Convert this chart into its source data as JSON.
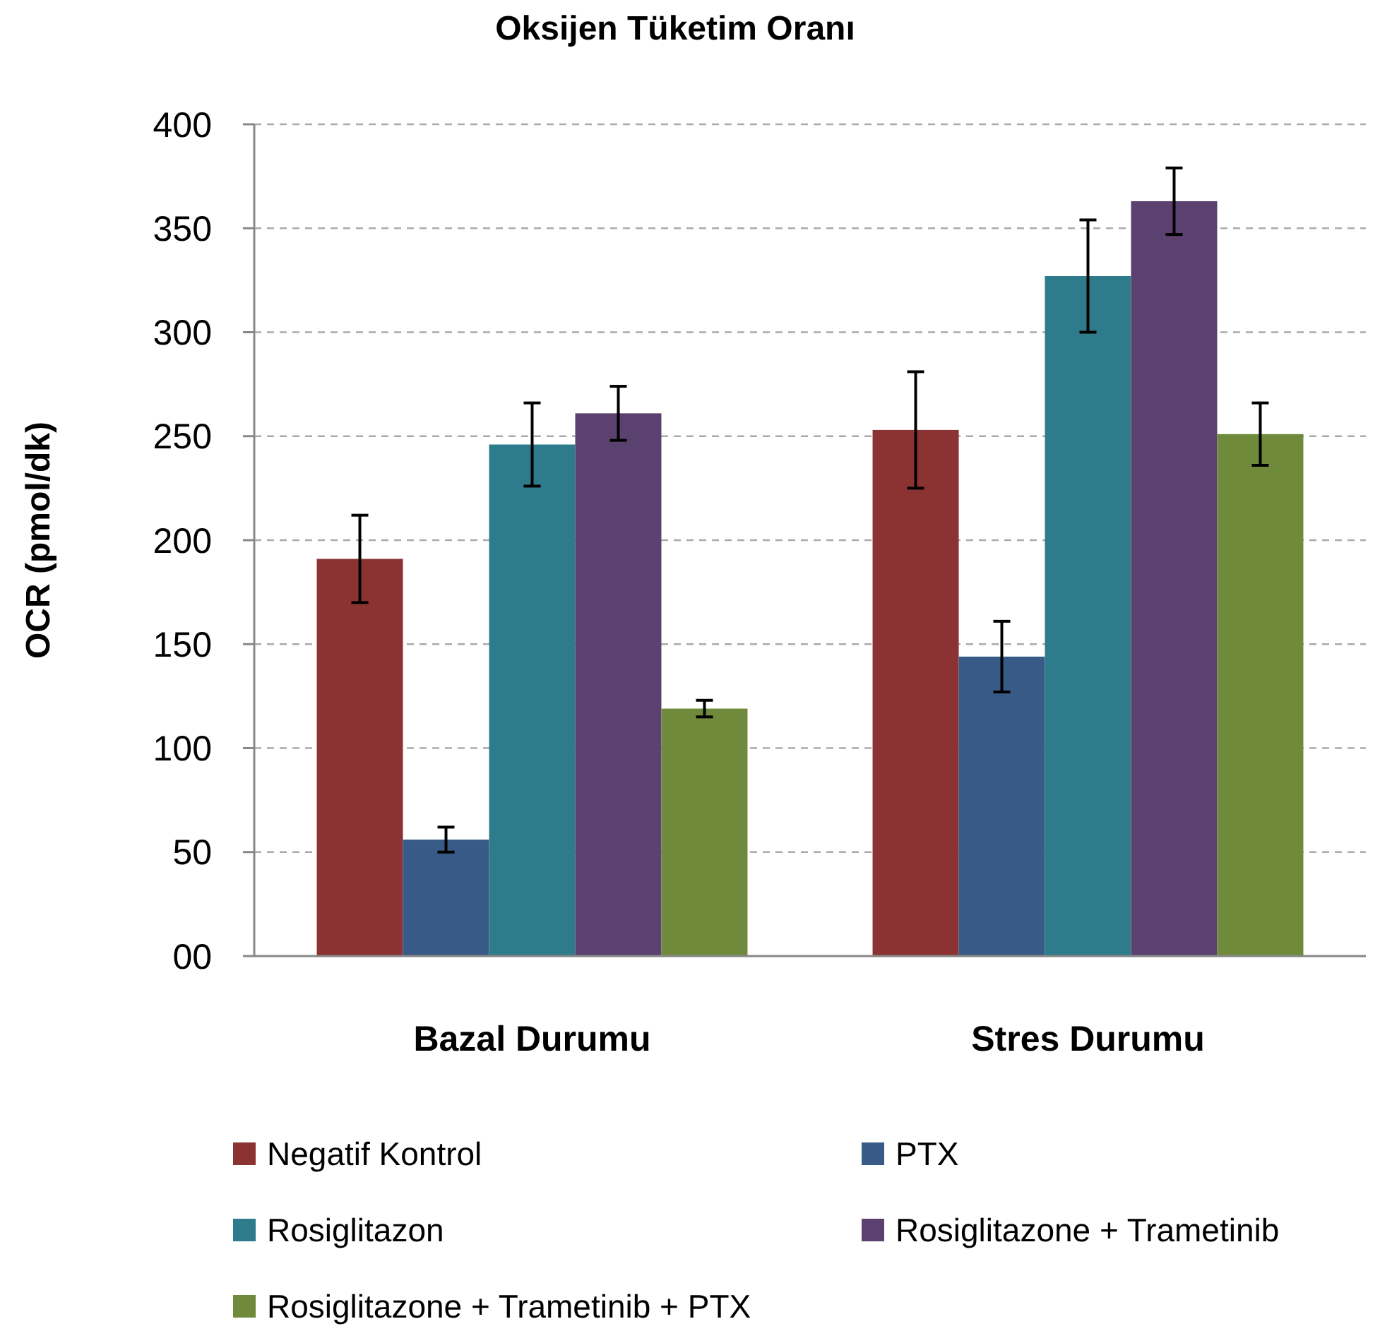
{
  "chart_data": {
    "type": "bar",
    "title": "Oksijen Tüketim Oranı",
    "ylabel": "OCR (pmol/dk)",
    "categories": [
      "Bazal Durumu",
      "Stres Durumu"
    ],
    "series": [
      {
        "name": "Negatif Kontrol",
        "color": "#8b3332",
        "values": [
          191,
          253
        ],
        "errors": [
          21,
          28
        ]
      },
      {
        "name": "PTX",
        "color": "#385a87",
        "values": [
          56,
          144
        ],
        "errors": [
          6,
          17
        ]
      },
      {
        "name": "Rosiglitazon",
        "color": "#2e7b8c",
        "values": [
          246,
          327
        ],
        "errors": [
          20,
          27
        ]
      },
      {
        "name": "Rosiglitazone + Trametinib",
        "color": "#5b416f",
        "values": [
          261,
          363
        ],
        "errors": [
          13,
          16
        ]
      },
      {
        "name": "Rosiglitazone + Trametinib + PTX",
        "color": "#6e8a3a",
        "values": [
          119,
          251
        ],
        "errors": [
          4,
          15
        ]
      }
    ],
    "ylim": [
      0,
      400
    ],
    "yticks": [
      {
        "value": 0,
        "label": "00"
      },
      50,
      100,
      150,
      200,
      250,
      300,
      350,
      400
    ],
    "grid": "y",
    "legend": "bottom"
  }
}
